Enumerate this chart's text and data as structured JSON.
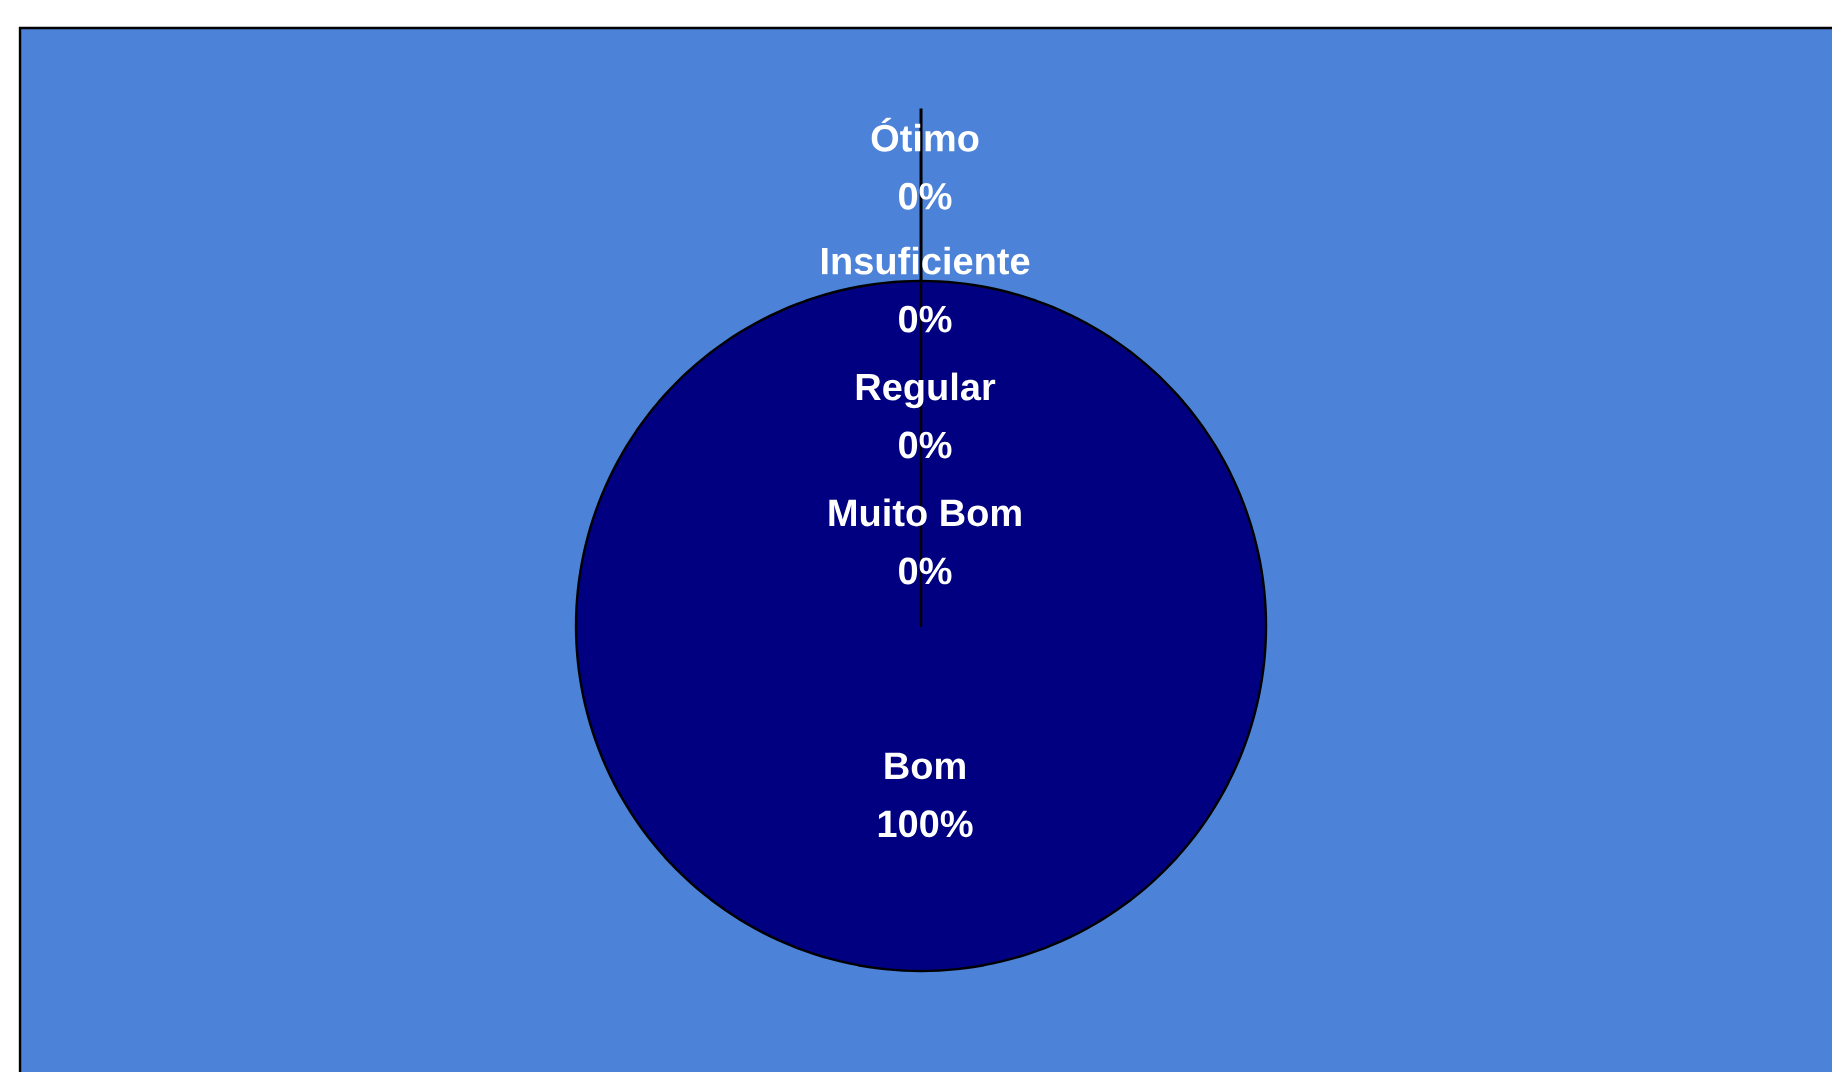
{
  "chart_data": {
    "type": "pie",
    "categories": [
      "Ótimo",
      "Insuficiente",
      "Regular",
      "Muito Bom",
      "Bom"
    ],
    "values": [
      0,
      0,
      0,
      0,
      100
    ],
    "colors": [
      "#000080",
      "#000080",
      "#000080",
      "#000080",
      "#000080"
    ],
    "value_labels": [
      "0%",
      "0%",
      "0%",
      "0%",
      "100%"
    ]
  }
}
